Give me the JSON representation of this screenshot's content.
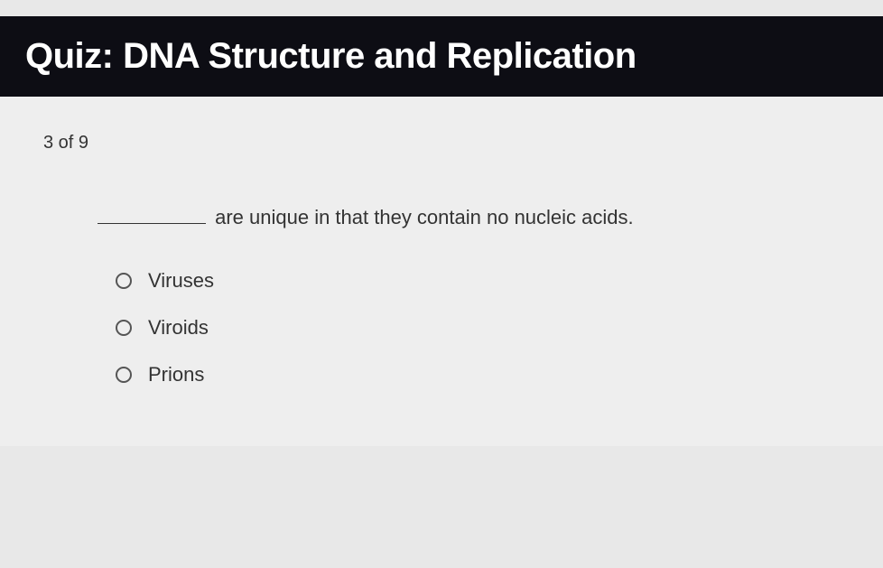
{
  "header": {
    "title": "Quiz: DNA Structure and Replication"
  },
  "progress": {
    "text": "3 of 9"
  },
  "question": {
    "text_after_blank": " are unique in that they contain no nucleic acids."
  },
  "options": [
    {
      "label": "Viruses"
    },
    {
      "label": "Viroids"
    },
    {
      "label": "Prions"
    }
  ],
  "styling": {
    "header_bg": "#0d0d14",
    "header_text_color": "#ffffff",
    "body_bg": "#eeeeee",
    "page_bg": "#e8e8e8",
    "text_color": "#333333",
    "radio_border_color": "#555555",
    "title_fontsize": 40,
    "body_fontsize": 22,
    "progress_fontsize": 20
  }
}
